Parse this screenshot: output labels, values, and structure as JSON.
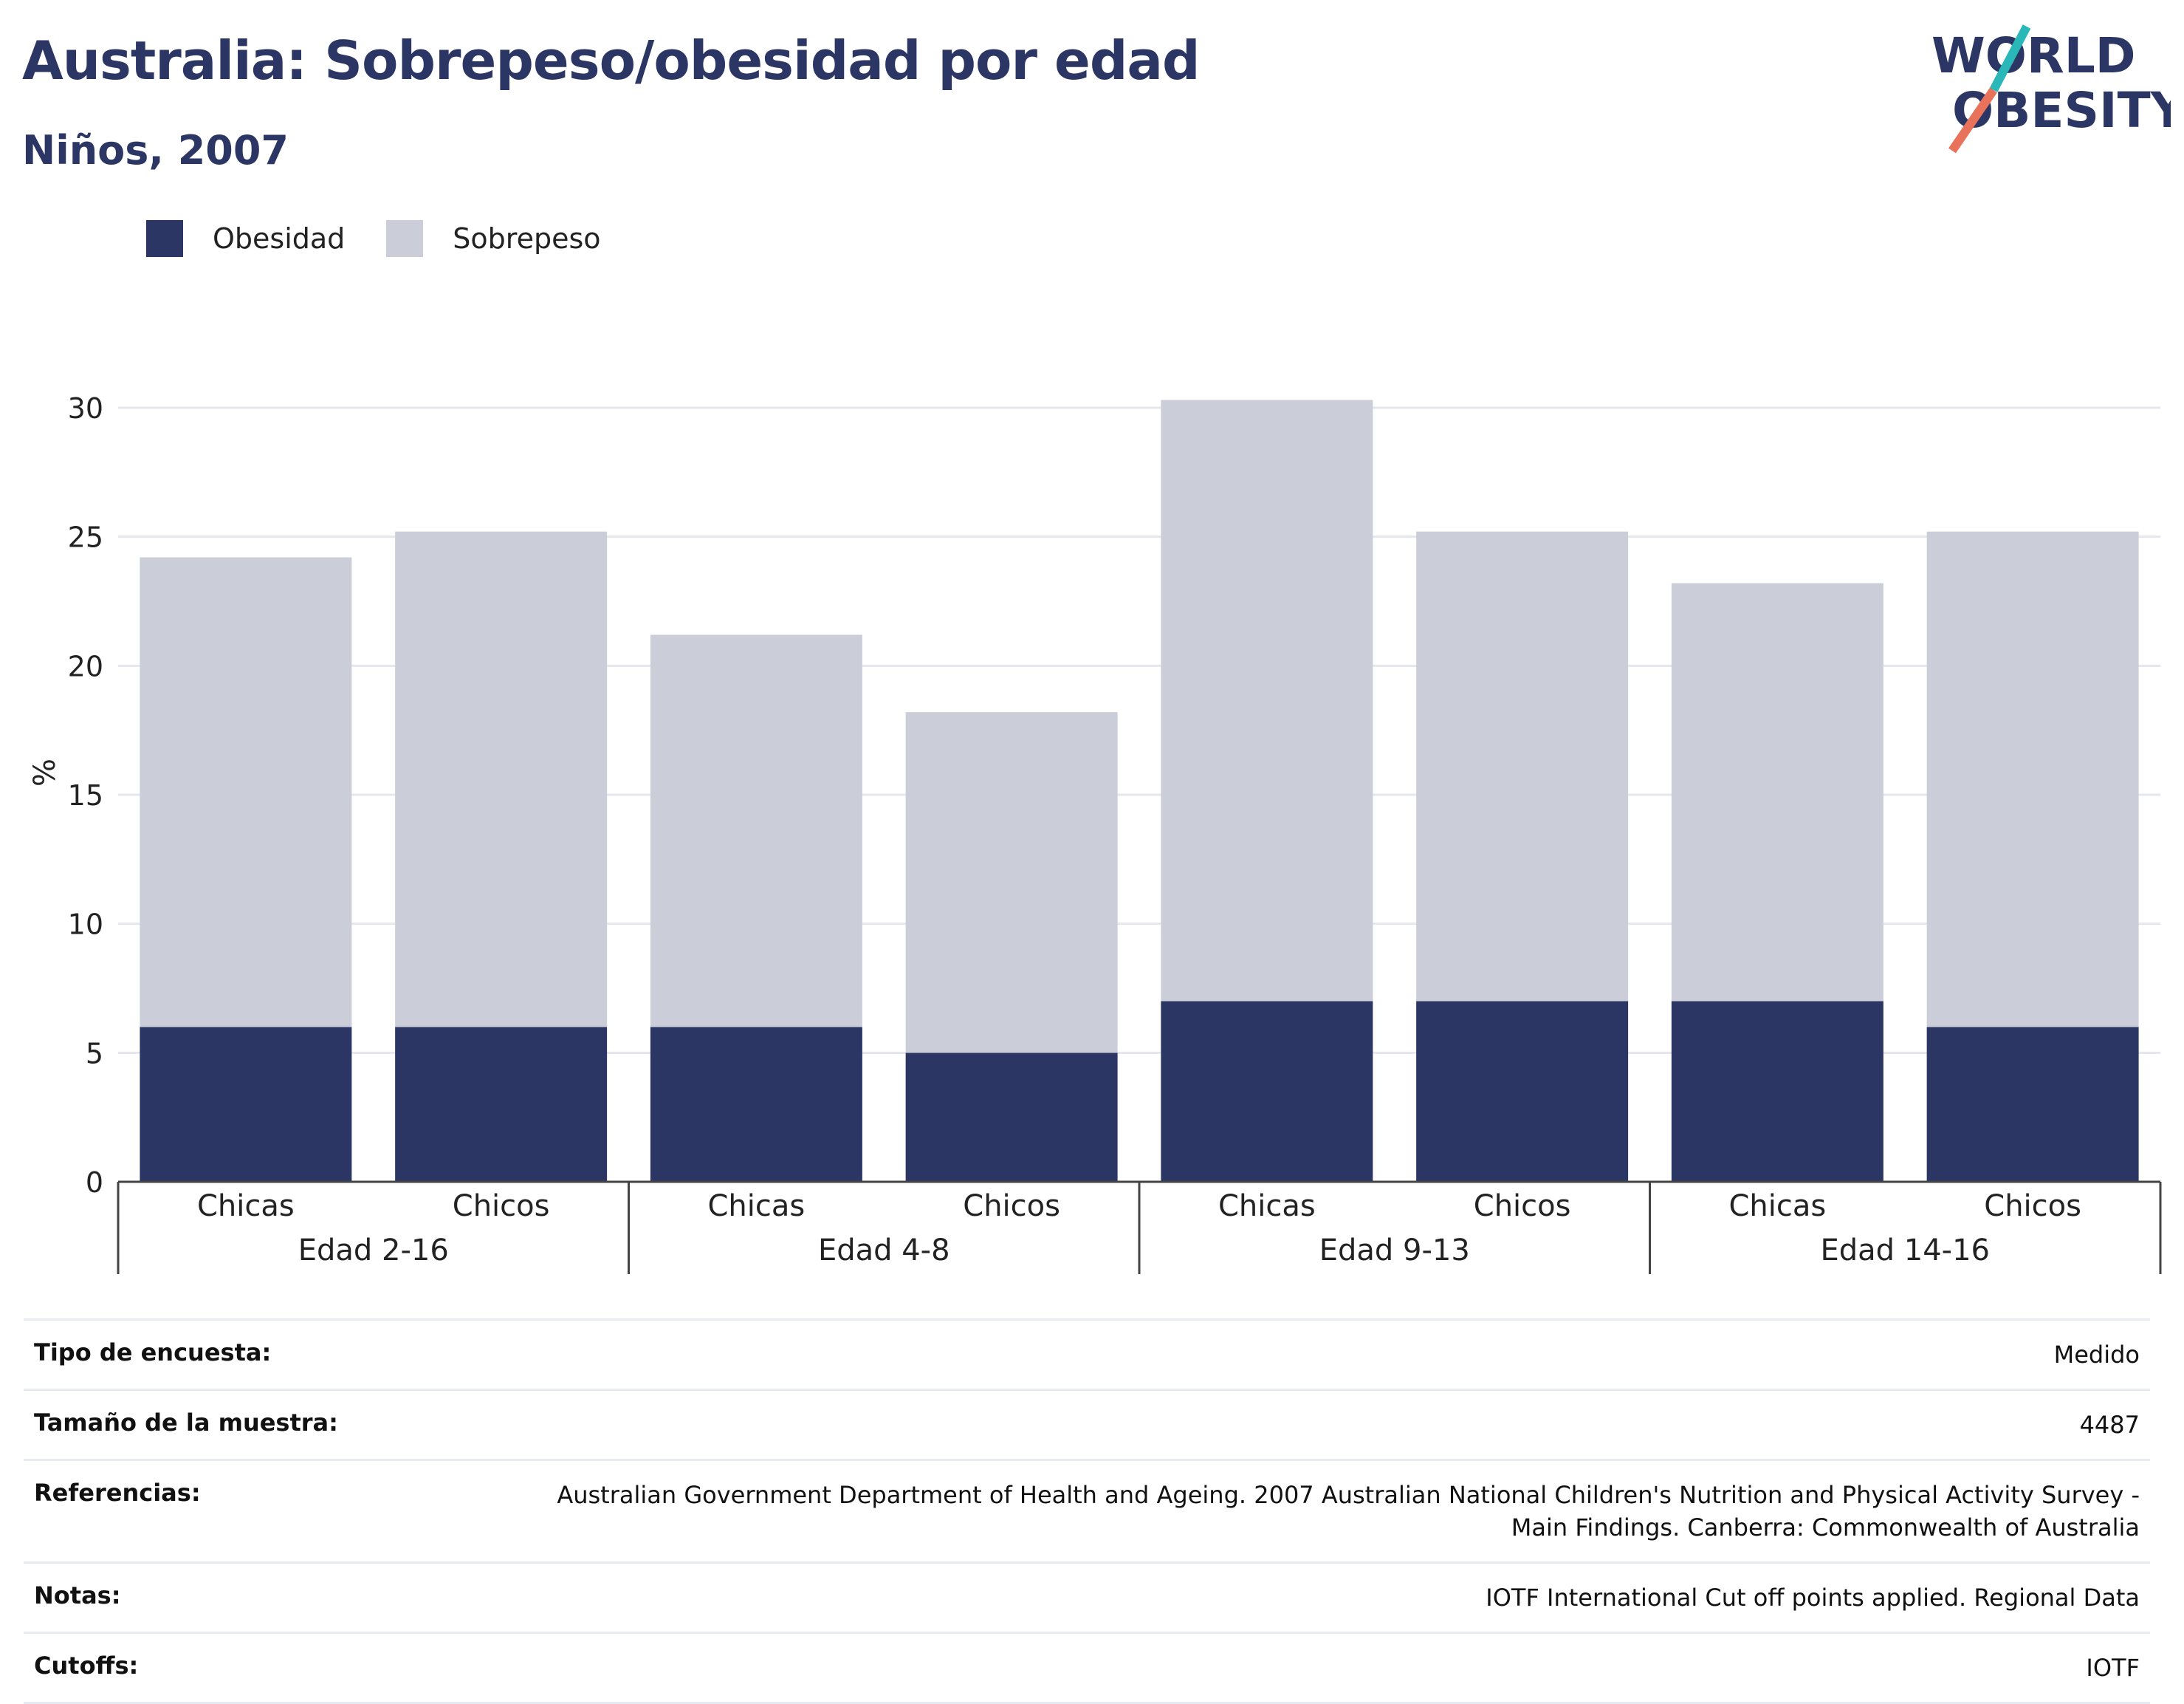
{
  "header": {
    "title": "Australia: Sobrepeso/obesidad por edad",
    "subtitle": "Niños, 2007"
  },
  "logo": {
    "line1": "WORLD",
    "line2": "OBESITY"
  },
  "colors": {
    "obesity": "#2b3664",
    "overweight": "#cbcdd9",
    "title": "#2b3664",
    "logo_teal": "#2ab7b7",
    "logo_coral": "#e8735a"
  },
  "chart_data": {
    "type": "bar",
    "stacked": true,
    "ylabel": "%",
    "ylim": [
      0,
      30
    ],
    "yticks": [
      0,
      5,
      10,
      15,
      20,
      25,
      30
    ],
    "grid": true,
    "legend_position": "top-left",
    "groups": [
      "Edad 2-16",
      "Edad 4-8",
      "Edad 9-13",
      "Edad 14-16"
    ],
    "categories": [
      "Chicas",
      "Chicos",
      "Chicas",
      "Chicos",
      "Chicas",
      "Chicos",
      "Chicas",
      "Chicos"
    ],
    "series": [
      {
        "name": "Obesidad",
        "values": [
          6,
          6,
          6,
          5,
          7,
          7,
          7,
          6
        ]
      },
      {
        "name": "Sobrepeso",
        "values": [
          18.2,
          19.2,
          15.2,
          13.2,
          23.3,
          18.2,
          16.2,
          19.2
        ]
      }
    ]
  },
  "info": [
    {
      "label": "Tipo de encuesta:",
      "value": "Medido"
    },
    {
      "label": "Tamaño de la muestra:",
      "value": "4487"
    },
    {
      "label": "Referencias:",
      "value": "Australian Government Department of Health and Ageing. 2007 Australian National Children's Nutrition and Physical Activity Survey - Main Findings. Canberra: Commonwealth of Australia"
    },
    {
      "label": "Notas:",
      "value": "IOTF International Cut off points applied. Regional Data"
    },
    {
      "label": "Cutoffs:",
      "value": "IOTF"
    }
  ]
}
